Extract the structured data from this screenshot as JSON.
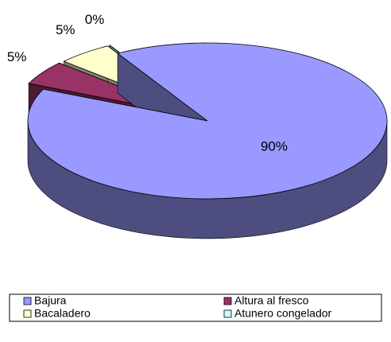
{
  "chart_data": {
    "type": "pie3d",
    "categories": [
      "Bajura",
      "Altura al fresco",
      "Bacaladero",
      "Atunero congelador"
    ],
    "values": [
      90,
      5,
      5,
      0
    ],
    "value_labels": [
      "90%",
      "5%",
      "5%",
      "0%"
    ],
    "colors": [
      "#9999ff",
      "#993366",
      "#ffffcc",
      "#ccffff"
    ],
    "legend": "bottom"
  }
}
